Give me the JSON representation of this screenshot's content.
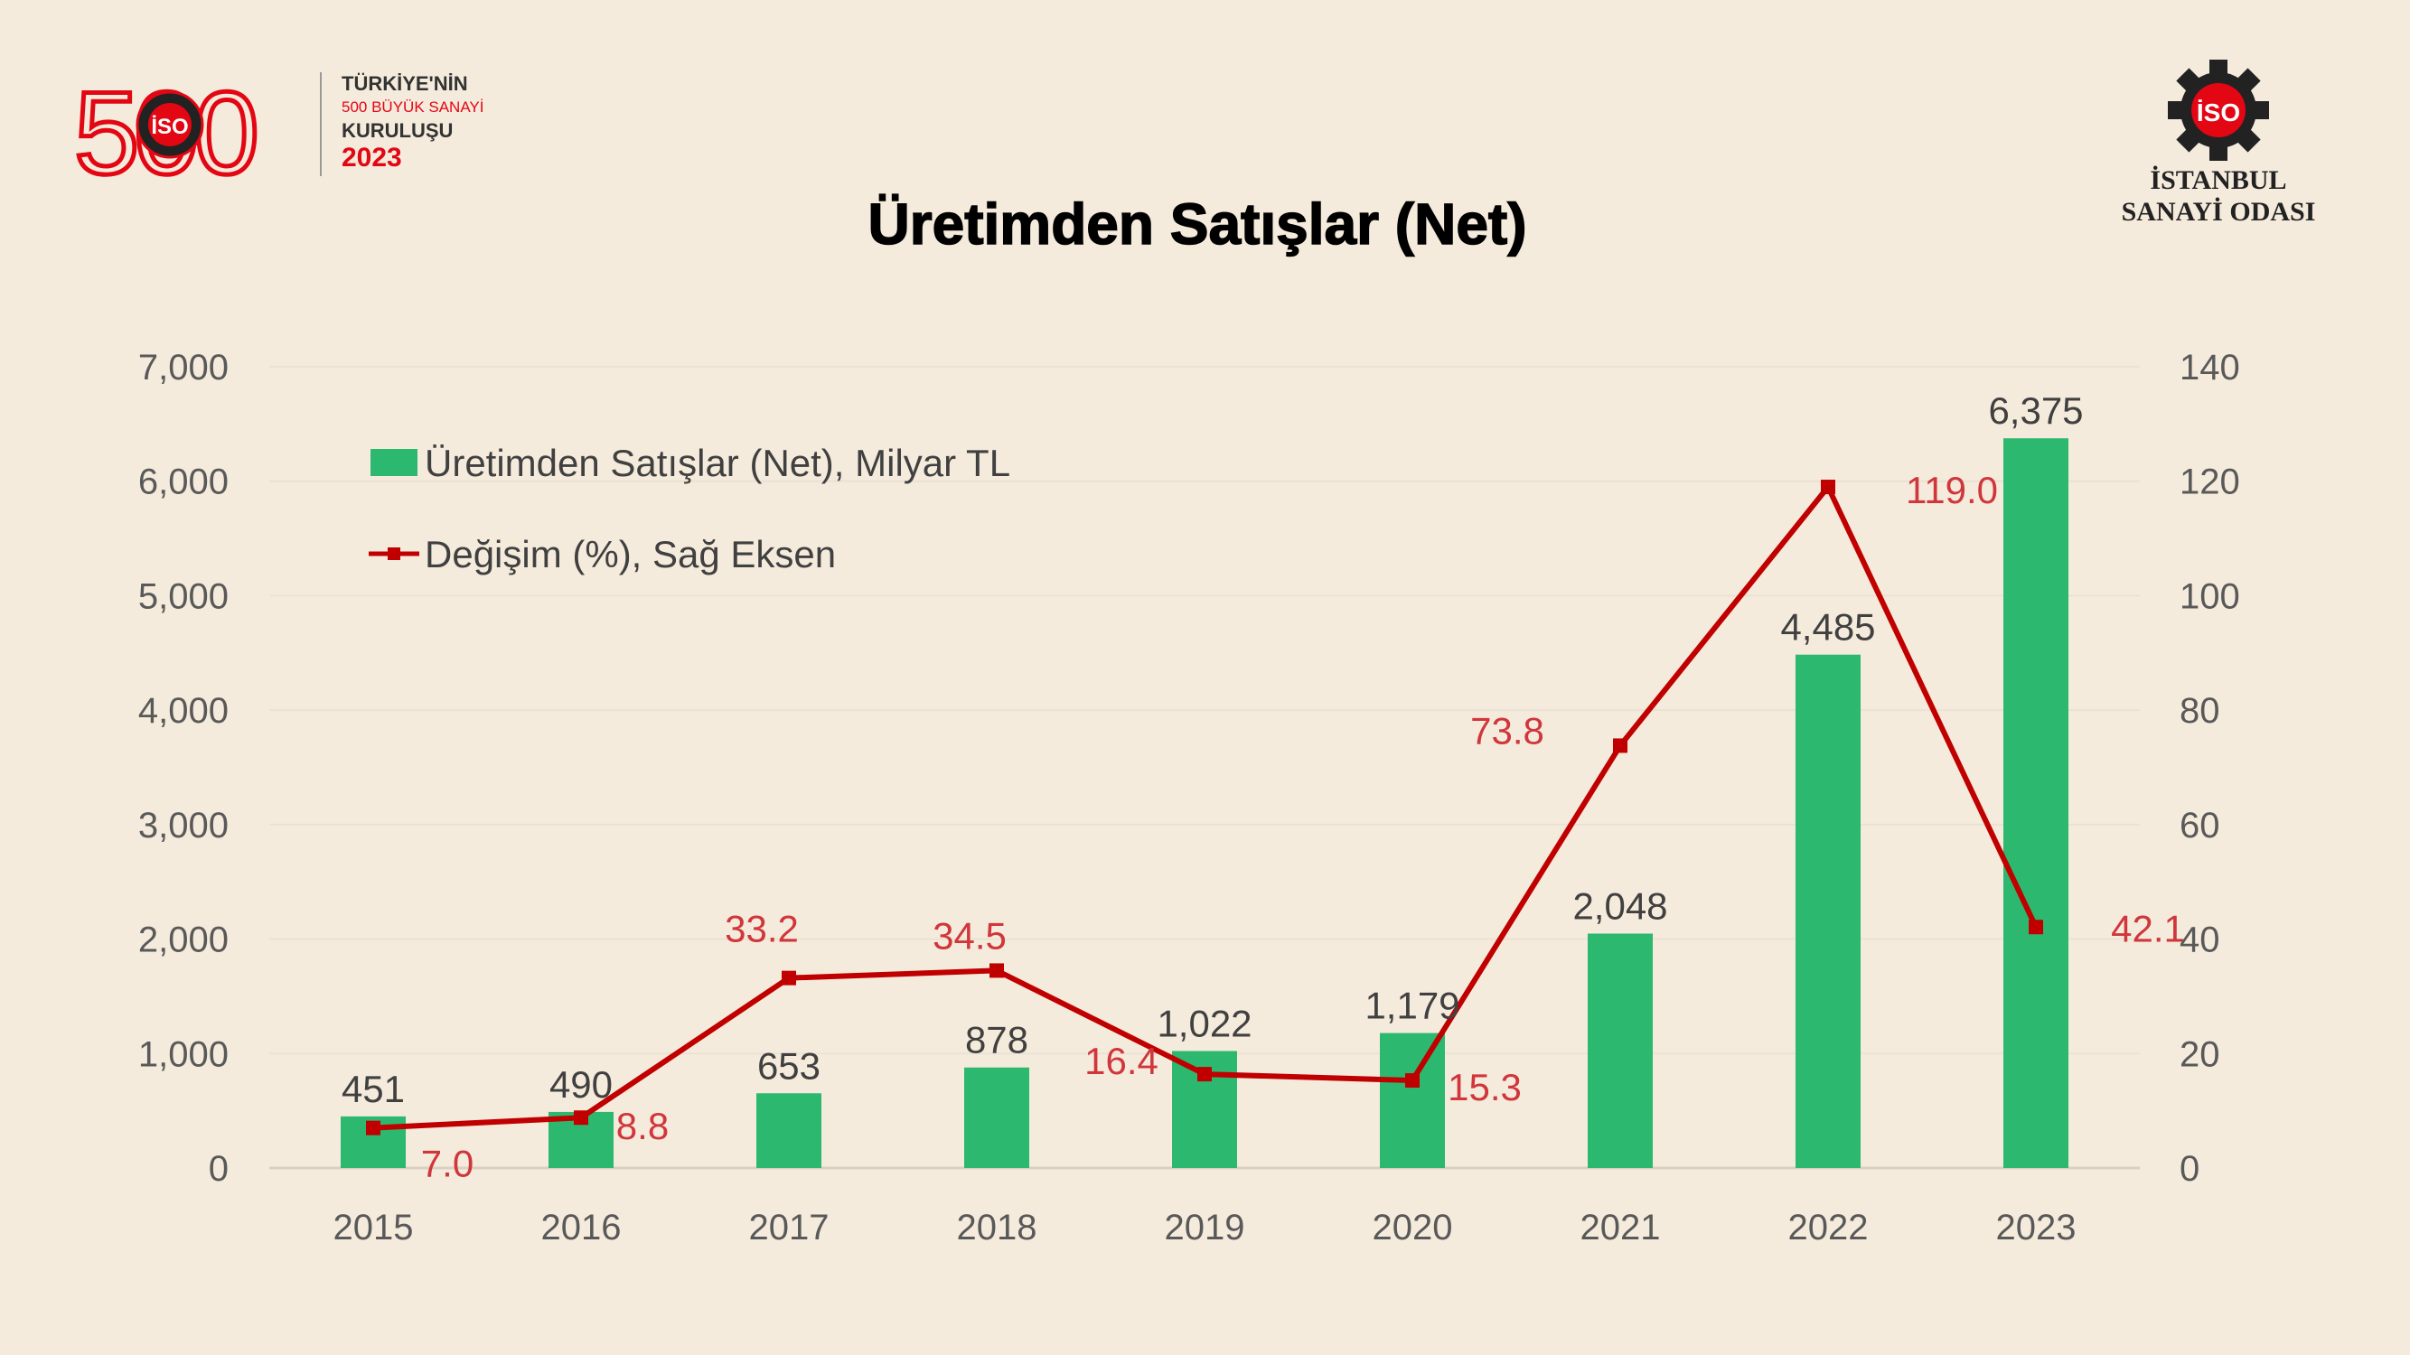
{
  "header": {
    "logo_500": {
      "number": "500",
      "badge": "İSO",
      "line1": "TÜRKİYE'NİN",
      "line2": "500 BÜYÜK SANAYİ",
      "line3": "KURULUŞU",
      "year": "2023"
    },
    "logo_iso": {
      "badge": "İSO",
      "line1": "İSTANBUL",
      "line2": "SANAYİ ODASI"
    }
  },
  "colors": {
    "background": "#f5ebdc",
    "bar": "#2db86f",
    "line": "#c00000",
    "line_label": "#d0363b",
    "brand_red": "#e30613"
  },
  "chart_data": {
    "type": "bar+line",
    "title": "Üretimden Satışlar (Net)",
    "categories": [
      "2015",
      "2016",
      "2017",
      "2018",
      "2019",
      "2020",
      "2021",
      "2022",
      "2023"
    ],
    "series": [
      {
        "name": "Üretimden Satışlar (Net), Milyar TL",
        "type": "bar",
        "axis": "left",
        "values": [
          451,
          490,
          653,
          878,
          1022,
          1179,
          2048,
          4485,
          6375
        ],
        "labels": [
          "451",
          "490",
          "653",
          "878",
          "1,022",
          "1,179",
          "2,048",
          "4,485",
          "6,375"
        ]
      },
      {
        "name": "Değişim (%), Sağ Eksen",
        "type": "line",
        "axis": "right",
        "values": [
          7.0,
          8.8,
          33.2,
          34.5,
          16.4,
          15.3,
          73.8,
          119.0,
          42.1
        ],
        "labels": [
          "7.0",
          "8.8",
          "33.2",
          "34.5",
          "16.4",
          "15.3",
          "73.8",
          "119.0",
          "42.1"
        ]
      }
    ],
    "y_left": {
      "min": 0,
      "max": 7000,
      "ticks": [
        "0",
        "1,000",
        "2,000",
        "3,000",
        "4,000",
        "5,000",
        "6,000",
        "7,000"
      ]
    },
    "y_right": {
      "min": 0,
      "max": 140,
      "ticks": [
        "0",
        "20",
        "40",
        "60",
        "80",
        "100",
        "120",
        "140"
      ]
    },
    "gridlines": true,
    "legend_position": "top-left"
  }
}
